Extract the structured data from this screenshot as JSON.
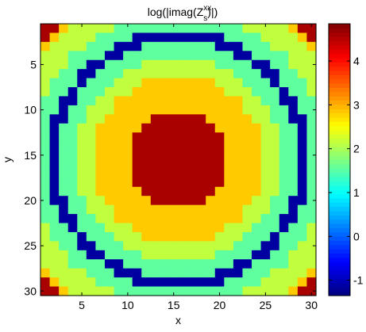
{
  "chart_data": {
    "type": "heatmap",
    "title": {
      "prefix": "log(|imag(Z",
      "subscript": "s",
      "superscript": "xx",
      "suffix": ")|)"
    },
    "xlabel": "x",
    "ylabel": "y",
    "xlim": [
      0.5,
      30.5
    ],
    "ylim": [
      0.5,
      30.5
    ],
    "y_reversed": true,
    "xticks": [
      5,
      10,
      15,
      20,
      25,
      30
    ],
    "yticks": [
      5,
      10,
      15,
      20,
      25,
      30
    ],
    "grid": false,
    "colormap": "jet",
    "clim": [
      -1.35,
      4.85
    ],
    "colorbar": {
      "placement": "right",
      "ticks": [
        -1,
        0,
        1,
        2,
        3,
        4
      ]
    },
    "grid_size": [
      30,
      30
    ],
    "center": [
      15.5,
      15.5
    ],
    "radial_levels": [
      {
        "max_radius": 5.3,
        "value": 4.6
      },
      {
        "max_radius": 9.2,
        "value": 2.85
      },
      {
        "max_radius": 11.3,
        "value": 2.15
      },
      {
        "max_radius": 13.2,
        "value": 1.55
      },
      {
        "max_radius": 14.3,
        "value": -1.15
      },
      {
        "max_radius": 16.3,
        "value": 1.55
      },
      {
        "max_radius": 18.7,
        "value": 2.15
      },
      {
        "max_radius": 19.8,
        "value": 2.85
      },
      {
        "max_radius": 99,
        "value": 4.6
      }
    ]
  }
}
